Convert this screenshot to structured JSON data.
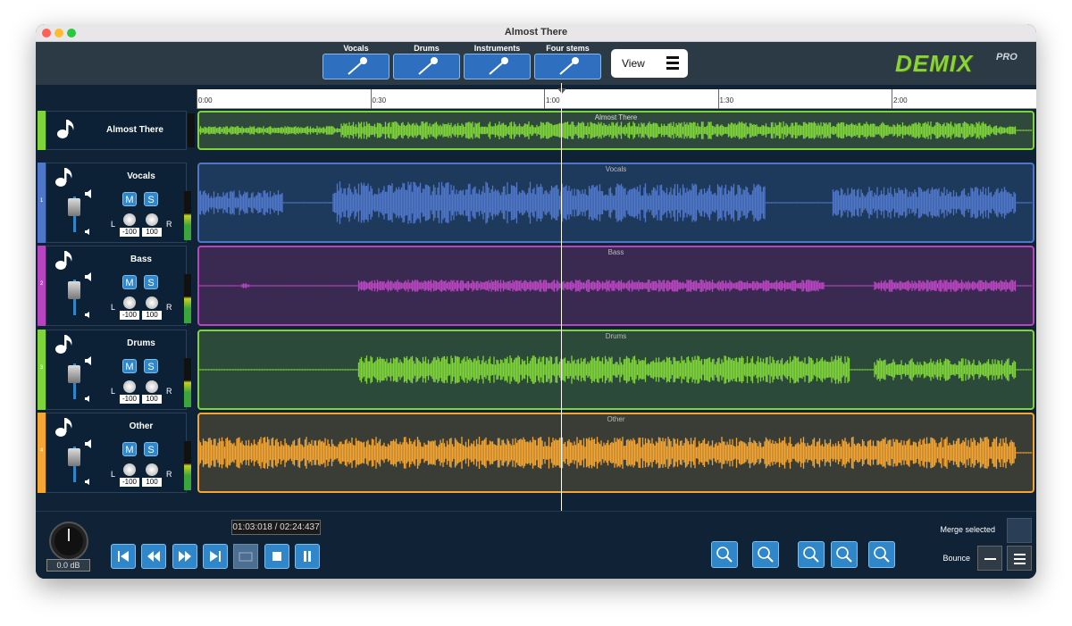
{
  "window": {
    "title": "Almost There"
  },
  "toolbar": {
    "stem_buttons": [
      "Vocals",
      "Drums",
      "Instruments",
      "Four stems"
    ],
    "view_button": "View",
    "logo": {
      "name": "DEMIX",
      "badge": "PRO"
    }
  },
  "timeline": {
    "ticks": [
      "0:00",
      "0:30",
      "1:00",
      "1:30",
      "2:00"
    ]
  },
  "master_track": {
    "name": "Almost There",
    "clip_label": "Almost There",
    "color": "#7fd43a"
  },
  "tracks": [
    {
      "number": 1,
      "name": "Vocals",
      "mute": "M",
      "solo": "S",
      "pan_left": "L",
      "pan_right": "R",
      "left_value": "-100",
      "right_value": "100",
      "clip_label": "Vocals",
      "color": "#4f76c9"
    },
    {
      "number": 2,
      "name": "Bass",
      "mute": "M",
      "solo": "S",
      "pan_left": "L",
      "pan_right": "R",
      "left_value": "-100",
      "right_value": "100",
      "clip_label": "Bass",
      "color": "#b845c0"
    },
    {
      "number": 3,
      "name": "Drums",
      "mute": "M",
      "solo": "S",
      "pan_left": "L",
      "pan_right": "R",
      "left_value": "-100",
      "right_value": "100",
      "clip_label": "Drums",
      "color": "#7fd43a"
    },
    {
      "number": 4,
      "name": "Other",
      "mute": "M",
      "solo": "S",
      "pan_left": "L",
      "pan_right": "R",
      "left_value": "-100",
      "right_value": "100",
      "clip_label": "Other",
      "color": "#f5a531"
    }
  ],
  "transport": {
    "time": "01:03:018 / 02:24:437",
    "volume": "0.0 dB"
  },
  "actions": {
    "merge": "Merge selected",
    "bounce": "Bounce"
  }
}
